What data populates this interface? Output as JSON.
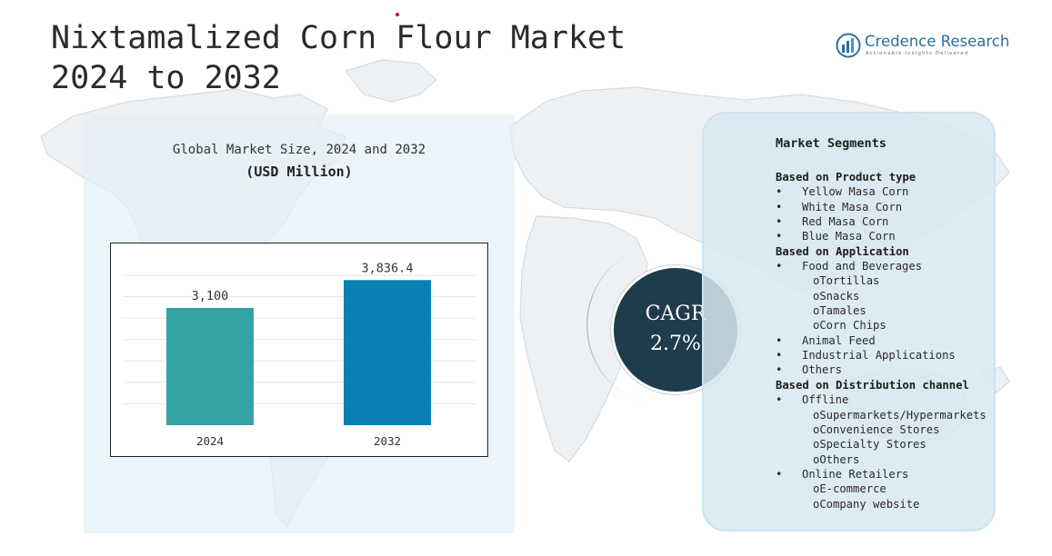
{
  "header": {
    "title_line1": "Nixtamalized Corn Flour Market",
    "title_line2": "2024 to 2032"
  },
  "logo": {
    "name": "Credence Research",
    "tagline": "Actionable Insights Delivered",
    "icon": "bar-chart-circle-icon"
  },
  "chart_panel": {
    "title": "Global Market Size, 2024 and 2032",
    "unit": "(USD Million)"
  },
  "chart_data": {
    "type": "bar",
    "title": "Global Market Size, 2024 and 2032",
    "ylabel": "(USD Million)",
    "categories": [
      "2024",
      "2032"
    ],
    "values": [
      3100,
      3836.4
    ],
    "value_labels": [
      "3,100",
      "3,836.4"
    ],
    "bar_colors": [
      "#35a2a5",
      "#0a7fb4"
    ],
    "ylim": [
      0,
      4300
    ],
    "grid": true
  },
  "cagr": {
    "label": "CAGR",
    "value": "2.7%"
  },
  "segments": {
    "title": "Market Segments",
    "lines": [
      {
        "kind": "head",
        "text": "Based on Product type"
      },
      {
        "kind": "bullet",
        "text": "Yellow Masa Corn"
      },
      {
        "kind": "bullet",
        "text": "White Masa Corn"
      },
      {
        "kind": "bullet",
        "text": "Red Masa Corn"
      },
      {
        "kind": "bullet",
        "text": "Blue Masa Corn"
      },
      {
        "kind": "head",
        "text": "Based on Application"
      },
      {
        "kind": "bullet",
        "text": "Food and Beverages"
      },
      {
        "kind": "sub",
        "text": "oTortillas"
      },
      {
        "kind": "sub",
        "text": "oSnacks"
      },
      {
        "kind": "sub",
        "text": "oTamales"
      },
      {
        "kind": "sub",
        "text": "oCorn Chips"
      },
      {
        "kind": "bullet",
        "text": "Animal Feed"
      },
      {
        "kind": "bullet",
        "text": "Industrial Applications"
      },
      {
        "kind": "bullet",
        "text": "Others"
      },
      {
        "kind": "head",
        "text": "Based on Distribution channel"
      },
      {
        "kind": "bullet",
        "text": "Offline"
      },
      {
        "kind": "sub",
        "text": "oSupermarkets/Hypermarkets"
      },
      {
        "kind": "sub",
        "text": "oConvenience Stores"
      },
      {
        "kind": "sub",
        "text": "oSpecialty Stores"
      },
      {
        "kind": "sub",
        "text": "oOthers"
      },
      {
        "kind": "bullet",
        "text": "Online Retailers"
      },
      {
        "kind": "sub",
        "text": "oE-commerce"
      },
      {
        "kind": "sub",
        "text": "oCompany website"
      }
    ],
    "bullet_char": "•"
  },
  "colors": {
    "accent": "#1e3c4c",
    "panel": "#e2eff7",
    "bar_2024": "#35a2a5",
    "bar_2032": "#0a7fb4",
    "map": "#dde3e8"
  }
}
